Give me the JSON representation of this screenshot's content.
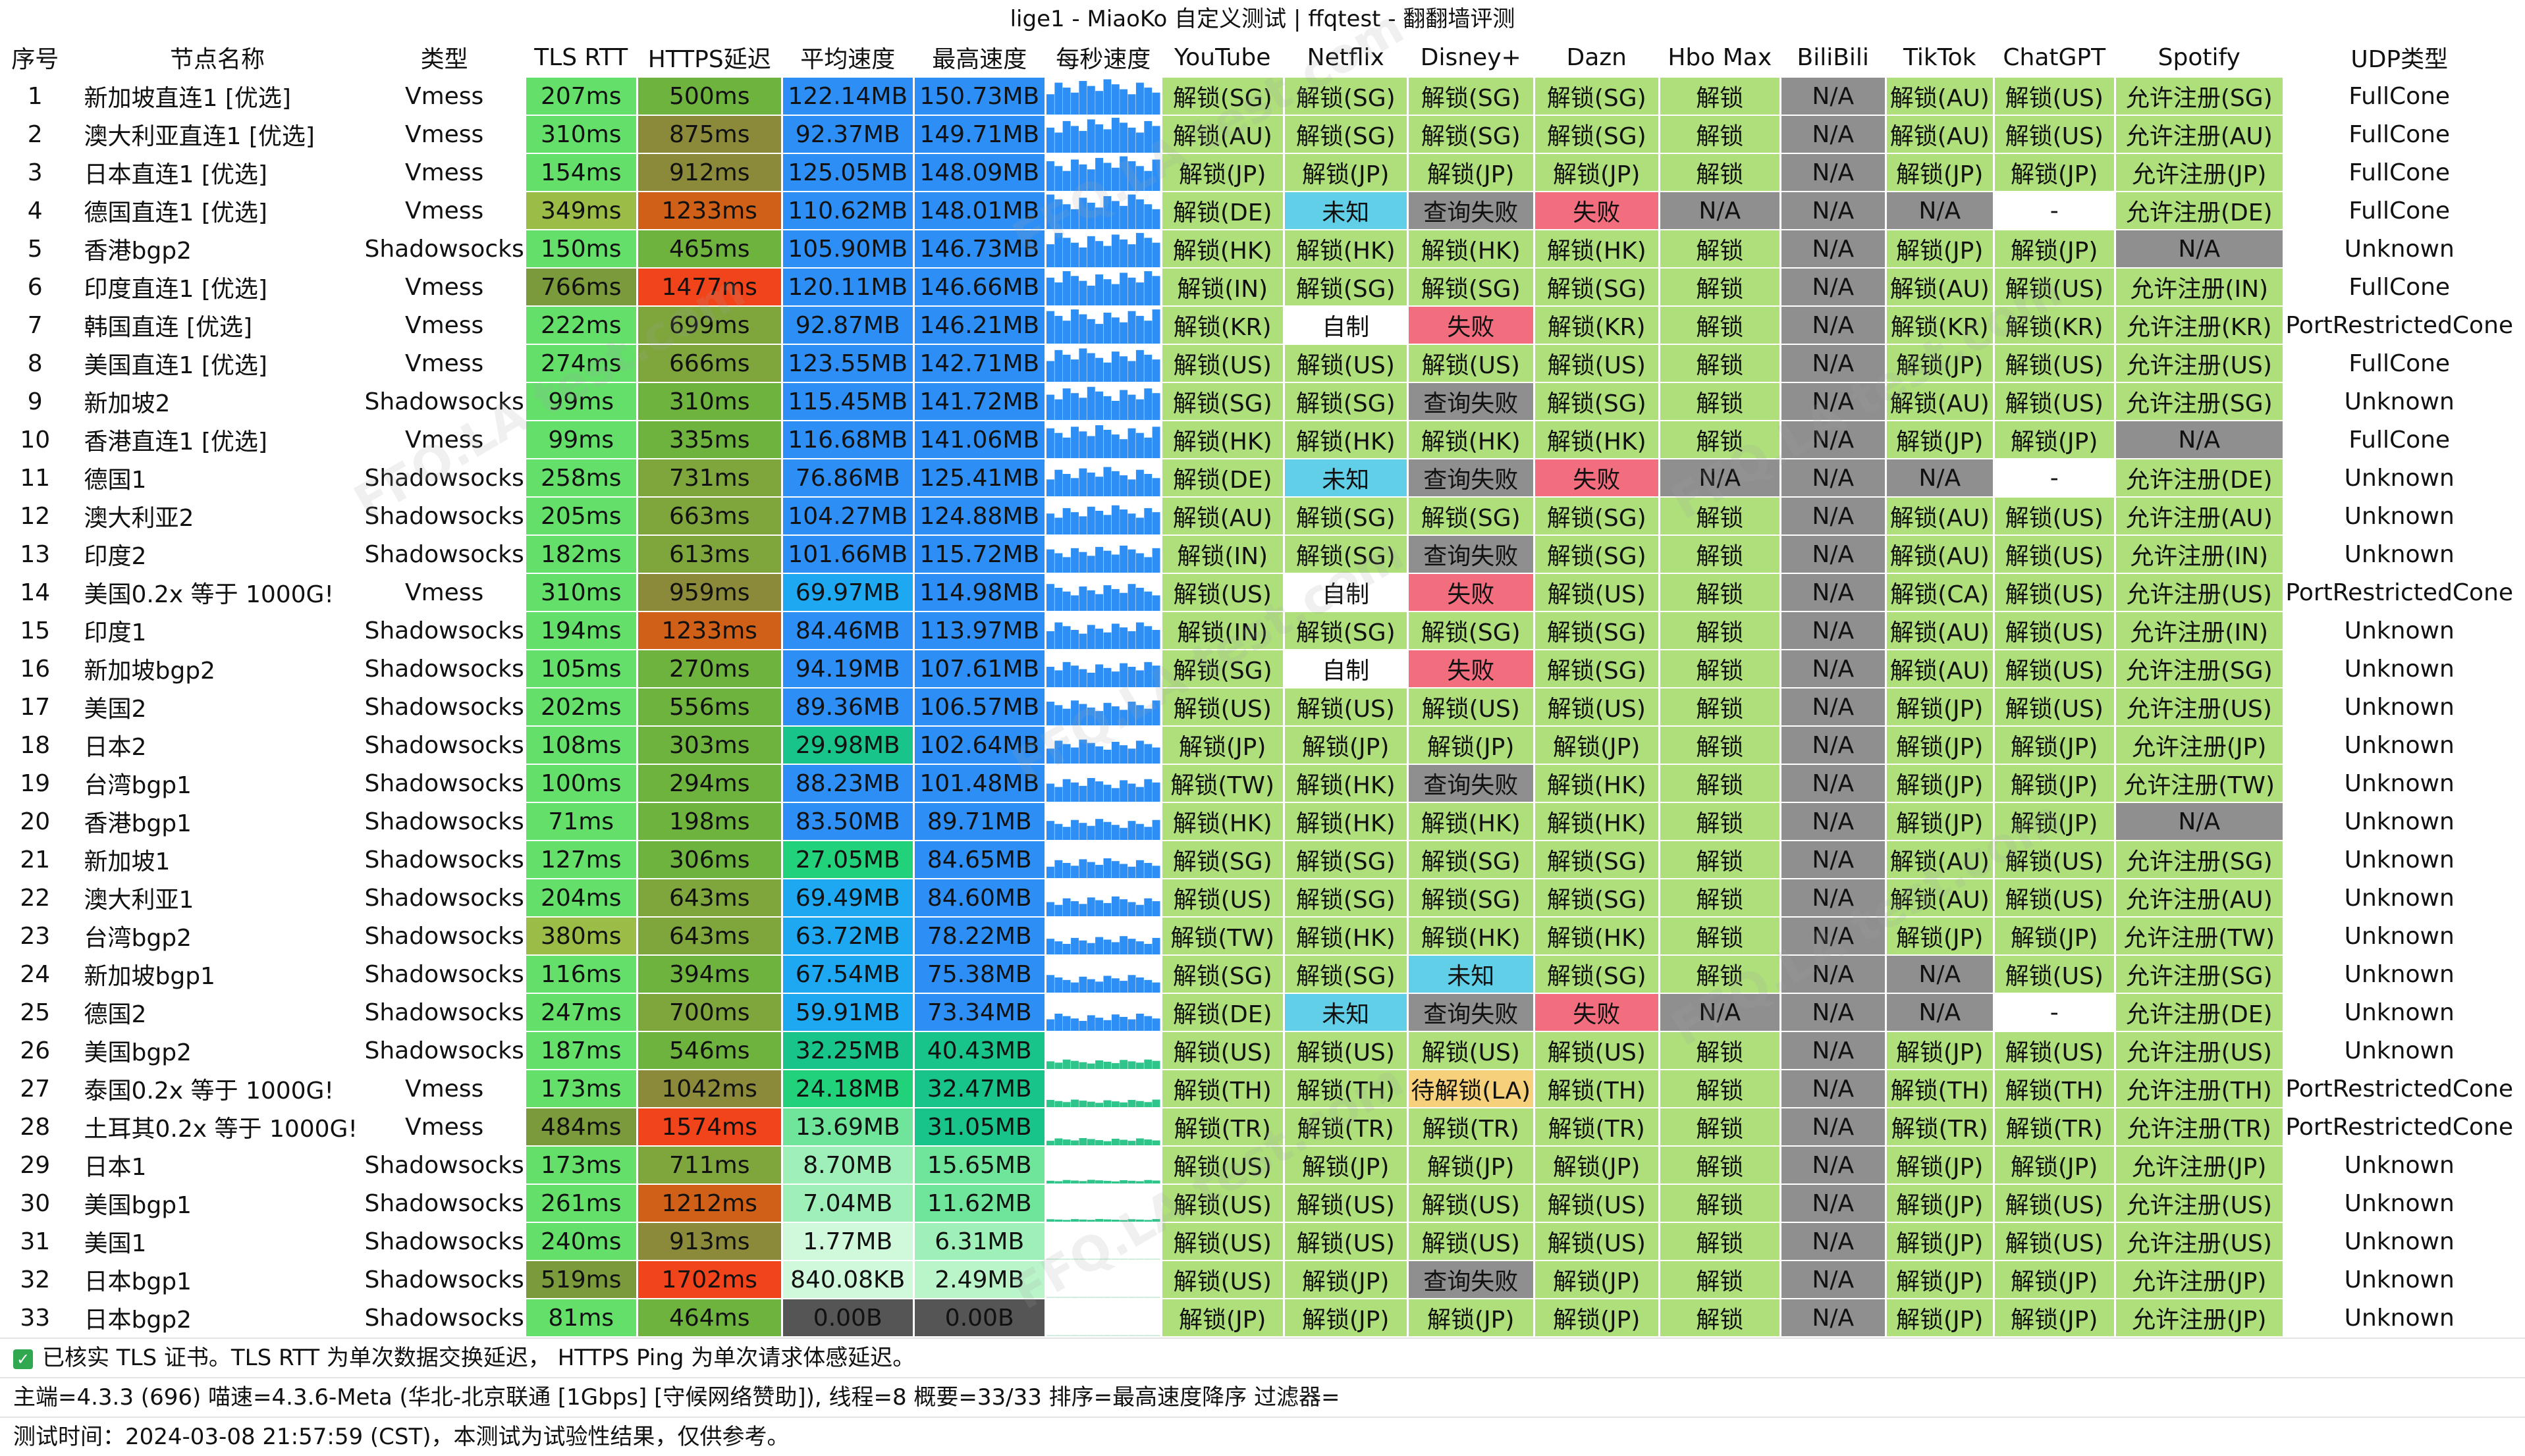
{
  "title": "lige1 - MiaoKo 自定义测试 | ffqtest - 翻翻墙评测",
  "watermark": "FFQ.LA test.com",
  "columns": [
    "序号",
    "节点名称",
    "类型",
    "TLS RTT",
    "HTTPS延迟",
    "平均速度",
    "最高速度",
    "每秒速度",
    "YouTube",
    "Netflix",
    "Disney+",
    "Dazn",
    "Hbo Max",
    "BiliBili",
    "TikTok",
    "ChatGPT",
    "Spotify",
    "UDP类型"
  ],
  "colors": {
    "unlock_green": "#aedf7b",
    "fail_red": "#f26e7f",
    "na_gray": "#8f8f8f",
    "unknown_blue": "#62cfe8",
    "pending_orange": "#f6d07a",
    "white": "#ffffff",
    "tls_green": "#64df6a",
    "tls_olive": "#7a9a3c",
    "tls_mid": "#9bbc46",
    "https_green": "#6fb33f",
    "https_olive": "#8a8a3a",
    "https_orange": "#d06018",
    "https_red": "#f2441a"
  },
  "rows": [
    {
      "no": "1",
      "name": "新加坡直连1 [优选]",
      "type": "Vmess",
      "tls": "207ms",
      "https": "500ms",
      "avg": "122.14MB",
      "max": "150.73MB",
      "yt": "解锁(SG)",
      "nf": "解锁(SG)",
      "dis": "解锁(SG)",
      "dazn": "解锁(SG)",
      "hbo": "解锁",
      "bili": "N/A",
      "tt": "解锁(AU)",
      "gpt": "解锁(US)",
      "sp": "允许注册(SG)",
      "udp": "FullCone"
    },
    {
      "no": "2",
      "name": "澳大利亚直连1 [优选]",
      "type": "Vmess",
      "tls": "310ms",
      "https": "875ms",
      "avg": "92.37MB",
      "max": "149.71MB",
      "yt": "解锁(AU)",
      "nf": "解锁(SG)",
      "dis": "解锁(SG)",
      "dazn": "解锁(SG)",
      "hbo": "解锁",
      "bili": "N/A",
      "tt": "解锁(AU)",
      "gpt": "解锁(US)",
      "sp": "允许注册(AU)",
      "udp": "FullCone"
    },
    {
      "no": "3",
      "name": "日本直连1 [优选]",
      "type": "Vmess",
      "tls": "154ms",
      "https": "912ms",
      "avg": "125.05MB",
      "max": "148.09MB",
      "yt": "解锁(JP)",
      "nf": "解锁(JP)",
      "dis": "解锁(JP)",
      "dazn": "解锁(JP)",
      "hbo": "解锁",
      "bili": "N/A",
      "tt": "解锁(JP)",
      "gpt": "解锁(JP)",
      "sp": "允许注册(JP)",
      "udp": "FullCone"
    },
    {
      "no": "4",
      "name": "德国直连1 [优选]",
      "type": "Vmess",
      "tls": "349ms",
      "https": "1233ms",
      "avg": "110.62MB",
      "max": "148.01MB",
      "yt": "解锁(DE)",
      "nf": "未知",
      "dis": "查询失败",
      "dazn": "失败",
      "hbo": "N/A",
      "bili": "N/A",
      "tt": "N/A",
      "gpt": "-",
      "sp": "允许注册(DE)",
      "udp": "FullCone"
    },
    {
      "no": "5",
      "name": "香港bgp2",
      "type": "Shadowsocks",
      "tls": "150ms",
      "https": "465ms",
      "avg": "105.90MB",
      "max": "146.73MB",
      "yt": "解锁(HK)",
      "nf": "解锁(HK)",
      "dis": "解锁(HK)",
      "dazn": "解锁(HK)",
      "hbo": "解锁",
      "bili": "N/A",
      "tt": "解锁(JP)",
      "gpt": "解锁(JP)",
      "sp": "N/A",
      "udp": "Unknown"
    },
    {
      "no": "6",
      "name": "印度直连1 [优选]",
      "type": "Vmess",
      "tls": "766ms",
      "https": "1477ms",
      "avg": "120.11MB",
      "max": "146.66MB",
      "yt": "解锁(IN)",
      "nf": "解锁(SG)",
      "dis": "解锁(SG)",
      "dazn": "解锁(SG)",
      "hbo": "解锁",
      "bili": "N/A",
      "tt": "解锁(AU)",
      "gpt": "解锁(US)",
      "sp": "允许注册(IN)",
      "udp": "FullCone"
    },
    {
      "no": "7",
      "name": "韩国直连 [优选]",
      "type": "Vmess",
      "tls": "222ms",
      "https": "699ms",
      "avg": "92.87MB",
      "max": "146.21MB",
      "yt": "解锁(KR)",
      "nf": "自制",
      "dis": "失败",
      "dazn": "解锁(KR)",
      "hbo": "解锁",
      "bili": "N/A",
      "tt": "解锁(KR)",
      "gpt": "解锁(KR)",
      "sp": "允许注册(KR)",
      "udp": "PortRestrictedCone"
    },
    {
      "no": "8",
      "name": "美国直连1 [优选]",
      "type": "Vmess",
      "tls": "274ms",
      "https": "666ms",
      "avg": "123.55MB",
      "max": "142.71MB",
      "yt": "解锁(US)",
      "nf": "解锁(US)",
      "dis": "解锁(US)",
      "dazn": "解锁(US)",
      "hbo": "解锁",
      "bili": "N/A",
      "tt": "解锁(JP)",
      "gpt": "解锁(US)",
      "sp": "允许注册(US)",
      "udp": "FullCone"
    },
    {
      "no": "9",
      "name": "新加坡2",
      "type": "Shadowsocks",
      "tls": "99ms",
      "https": "310ms",
      "avg": "115.45MB",
      "max": "141.72MB",
      "yt": "解锁(SG)",
      "nf": "解锁(SG)",
      "dis": "查询失败",
      "dazn": "解锁(SG)",
      "hbo": "解锁",
      "bili": "N/A",
      "tt": "解锁(AU)",
      "gpt": "解锁(US)",
      "sp": "允许注册(SG)",
      "udp": "Unknown"
    },
    {
      "no": "10",
      "name": "香港直连1 [优选]",
      "type": "Vmess",
      "tls": "99ms",
      "https": "335ms",
      "avg": "116.68MB",
      "max": "141.06MB",
      "yt": "解锁(HK)",
      "nf": "解锁(HK)",
      "dis": "解锁(HK)",
      "dazn": "解锁(HK)",
      "hbo": "解锁",
      "bili": "N/A",
      "tt": "解锁(JP)",
      "gpt": "解锁(JP)",
      "sp": "N/A",
      "udp": "FullCone"
    },
    {
      "no": "11",
      "name": "德国1",
      "type": "Shadowsocks",
      "tls": "258ms",
      "https": "731ms",
      "avg": "76.86MB",
      "max": "125.41MB",
      "yt": "解锁(DE)",
      "nf": "未知",
      "dis": "查询失败",
      "dazn": "失败",
      "hbo": "N/A",
      "bili": "N/A",
      "tt": "N/A",
      "gpt": "-",
      "sp": "允许注册(DE)",
      "udp": "Unknown"
    },
    {
      "no": "12",
      "name": "澳大利亚2",
      "type": "Shadowsocks",
      "tls": "205ms",
      "https": "663ms",
      "avg": "104.27MB",
      "max": "124.88MB",
      "yt": "解锁(AU)",
      "nf": "解锁(SG)",
      "dis": "解锁(SG)",
      "dazn": "解锁(SG)",
      "hbo": "解锁",
      "bili": "N/A",
      "tt": "解锁(AU)",
      "gpt": "解锁(US)",
      "sp": "允许注册(AU)",
      "udp": "Unknown"
    },
    {
      "no": "13",
      "name": "印度2",
      "type": "Shadowsocks",
      "tls": "182ms",
      "https": "613ms",
      "avg": "101.66MB",
      "max": "115.72MB",
      "yt": "解锁(IN)",
      "nf": "解锁(SG)",
      "dis": "查询失败",
      "dazn": "解锁(SG)",
      "hbo": "解锁",
      "bili": "N/A",
      "tt": "解锁(AU)",
      "gpt": "解锁(US)",
      "sp": "允许注册(IN)",
      "udp": "Unknown"
    },
    {
      "no": "14",
      "name": "美国0.2x 等于 1000G!",
      "type": "Vmess",
      "tls": "310ms",
      "https": "959ms",
      "avg": "69.97MB",
      "max": "114.98MB",
      "yt": "解锁(US)",
      "nf": "自制",
      "dis": "失败",
      "dazn": "解锁(US)",
      "hbo": "解锁",
      "bili": "N/A",
      "tt": "解锁(CA)",
      "gpt": "解锁(US)",
      "sp": "允许注册(US)",
      "udp": "PortRestrictedCone"
    },
    {
      "no": "15",
      "name": "印度1",
      "type": "Shadowsocks",
      "tls": "194ms",
      "https": "1233ms",
      "avg": "84.46MB",
      "max": "113.97MB",
      "yt": "解锁(IN)",
      "nf": "解锁(SG)",
      "dis": "解锁(SG)",
      "dazn": "解锁(SG)",
      "hbo": "解锁",
      "bili": "N/A",
      "tt": "解锁(AU)",
      "gpt": "解锁(US)",
      "sp": "允许注册(IN)",
      "udp": "Unknown"
    },
    {
      "no": "16",
      "name": "新加坡bgp2",
      "type": "Shadowsocks",
      "tls": "105ms",
      "https": "270ms",
      "avg": "94.19MB",
      "max": "107.61MB",
      "yt": "解锁(SG)",
      "nf": "自制",
      "dis": "失败",
      "dazn": "解锁(SG)",
      "hbo": "解锁",
      "bili": "N/A",
      "tt": "解锁(AU)",
      "gpt": "解锁(US)",
      "sp": "允许注册(SG)",
      "udp": "Unknown"
    },
    {
      "no": "17",
      "name": "美国2",
      "type": "Shadowsocks",
      "tls": "202ms",
      "https": "556ms",
      "avg": "89.36MB",
      "max": "106.57MB",
      "yt": "解锁(US)",
      "nf": "解锁(US)",
      "dis": "解锁(US)",
      "dazn": "解锁(US)",
      "hbo": "解锁",
      "bili": "N/A",
      "tt": "解锁(JP)",
      "gpt": "解锁(US)",
      "sp": "允许注册(US)",
      "udp": "Unknown"
    },
    {
      "no": "18",
      "name": "日本2",
      "type": "Shadowsocks",
      "tls": "108ms",
      "https": "303ms",
      "avg": "29.98MB",
      "max": "102.64MB",
      "yt": "解锁(JP)",
      "nf": "解锁(JP)",
      "dis": "解锁(JP)",
      "dazn": "解锁(JP)",
      "hbo": "解锁",
      "bili": "N/A",
      "tt": "解锁(JP)",
      "gpt": "解锁(JP)",
      "sp": "允许注册(JP)",
      "udp": "Unknown"
    },
    {
      "no": "19",
      "name": "台湾bgp1",
      "type": "Shadowsocks",
      "tls": "100ms",
      "https": "294ms",
      "avg": "88.23MB",
      "max": "101.48MB",
      "yt": "解锁(TW)",
      "nf": "解锁(HK)",
      "dis": "查询失败",
      "dazn": "解锁(HK)",
      "hbo": "解锁",
      "bili": "N/A",
      "tt": "解锁(JP)",
      "gpt": "解锁(JP)",
      "sp": "允许注册(TW)",
      "udp": "Unknown"
    },
    {
      "no": "20",
      "name": "香港bgp1",
      "type": "Shadowsocks",
      "tls": "71ms",
      "https": "198ms",
      "avg": "83.50MB",
      "max": "89.71MB",
      "yt": "解锁(HK)",
      "nf": "解锁(HK)",
      "dis": "解锁(HK)",
      "dazn": "解锁(HK)",
      "hbo": "解锁",
      "bili": "N/A",
      "tt": "解锁(JP)",
      "gpt": "解锁(JP)",
      "sp": "N/A",
      "udp": "Unknown"
    },
    {
      "no": "21",
      "name": "新加坡1",
      "type": "Shadowsocks",
      "tls": "127ms",
      "https": "306ms",
      "avg": "27.05MB",
      "max": "84.65MB",
      "yt": "解锁(SG)",
      "nf": "解锁(SG)",
      "dis": "解锁(SG)",
      "dazn": "解锁(SG)",
      "hbo": "解锁",
      "bili": "N/A",
      "tt": "解锁(AU)",
      "gpt": "解锁(US)",
      "sp": "允许注册(SG)",
      "udp": "Unknown"
    },
    {
      "no": "22",
      "name": "澳大利亚1",
      "type": "Shadowsocks",
      "tls": "204ms",
      "https": "643ms",
      "avg": "69.49MB",
      "max": "84.60MB",
      "yt": "解锁(US)",
      "nf": "解锁(SG)",
      "dis": "解锁(SG)",
      "dazn": "解锁(SG)",
      "hbo": "解锁",
      "bili": "N/A",
      "tt": "解锁(AU)",
      "gpt": "解锁(US)",
      "sp": "允许注册(AU)",
      "udp": "Unknown"
    },
    {
      "no": "23",
      "name": "台湾bgp2",
      "type": "Shadowsocks",
      "tls": "380ms",
      "https": "643ms",
      "avg": "63.72MB",
      "max": "78.22MB",
      "yt": "解锁(TW)",
      "nf": "解锁(HK)",
      "dis": "解锁(HK)",
      "dazn": "解锁(HK)",
      "hbo": "解锁",
      "bili": "N/A",
      "tt": "解锁(JP)",
      "gpt": "解锁(JP)",
      "sp": "允许注册(TW)",
      "udp": "Unknown"
    },
    {
      "no": "24",
      "name": "新加坡bgp1",
      "type": "Shadowsocks",
      "tls": "116ms",
      "https": "394ms",
      "avg": "67.54MB",
      "max": "75.38MB",
      "yt": "解锁(SG)",
      "nf": "解锁(SG)",
      "dis": "未知",
      "dazn": "解锁(SG)",
      "hbo": "解锁",
      "bili": "N/A",
      "tt": "N/A",
      "gpt": "解锁(US)",
      "sp": "允许注册(SG)",
      "udp": "Unknown"
    },
    {
      "no": "25",
      "name": "德国2",
      "type": "Shadowsocks",
      "tls": "247ms",
      "https": "700ms",
      "avg": "59.91MB",
      "max": "73.34MB",
      "yt": "解锁(DE)",
      "nf": "未知",
      "dis": "查询失败",
      "dazn": "失败",
      "hbo": "N/A",
      "bili": "N/A",
      "tt": "N/A",
      "gpt": "-",
      "sp": "允许注册(DE)",
      "udp": "Unknown"
    },
    {
      "no": "26",
      "name": "美国bgp2",
      "type": "Shadowsocks",
      "tls": "187ms",
      "https": "546ms",
      "avg": "32.25MB",
      "max": "40.43MB",
      "yt": "解锁(US)",
      "nf": "解锁(US)",
      "dis": "解锁(US)",
      "dazn": "解锁(US)",
      "hbo": "解锁",
      "bili": "N/A",
      "tt": "解锁(JP)",
      "gpt": "解锁(US)",
      "sp": "允许注册(US)",
      "udp": "Unknown"
    },
    {
      "no": "27",
      "name": "泰国0.2x 等于 1000G!",
      "type": "Vmess",
      "tls": "173ms",
      "https": "1042ms",
      "avg": "24.18MB",
      "max": "32.47MB",
      "yt": "解锁(TH)",
      "nf": "解锁(TH)",
      "dis": "待解锁(LA)",
      "dazn": "解锁(TH)",
      "hbo": "解锁",
      "bili": "N/A",
      "tt": "解锁(TH)",
      "gpt": "解锁(TH)",
      "sp": "允许注册(TH)",
      "udp": "PortRestrictedCone"
    },
    {
      "no": "28",
      "name": "土耳其0.2x 等于 1000G!",
      "type": "Vmess",
      "tls": "484ms",
      "https": "1574ms",
      "avg": "13.69MB",
      "max": "31.05MB",
      "yt": "解锁(TR)",
      "nf": "解锁(TR)",
      "dis": "解锁(TR)",
      "dazn": "解锁(TR)",
      "hbo": "解锁",
      "bili": "N/A",
      "tt": "解锁(TR)",
      "gpt": "解锁(TR)",
      "sp": "允许注册(TR)",
      "udp": "PortRestrictedCone"
    },
    {
      "no": "29",
      "name": "日本1",
      "type": "Shadowsocks",
      "tls": "173ms",
      "https": "711ms",
      "avg": "8.70MB",
      "max": "15.65MB",
      "yt": "解锁(US)",
      "nf": "解锁(JP)",
      "dis": "解锁(JP)",
      "dazn": "解锁(JP)",
      "hbo": "解锁",
      "bili": "N/A",
      "tt": "解锁(JP)",
      "gpt": "解锁(JP)",
      "sp": "允许注册(JP)",
      "udp": "Unknown"
    },
    {
      "no": "30",
      "name": "美国bgp1",
      "type": "Shadowsocks",
      "tls": "261ms",
      "https": "1212ms",
      "avg": "7.04MB",
      "max": "11.62MB",
      "yt": "解锁(US)",
      "nf": "解锁(US)",
      "dis": "解锁(US)",
      "dazn": "解锁(US)",
      "hbo": "解锁",
      "bili": "N/A",
      "tt": "解锁(JP)",
      "gpt": "解锁(US)",
      "sp": "允许注册(US)",
      "udp": "Unknown"
    },
    {
      "no": "31",
      "name": "美国1",
      "type": "Shadowsocks",
      "tls": "240ms",
      "https": "913ms",
      "avg": "1.77MB",
      "max": "6.31MB",
      "yt": "解锁(US)",
      "nf": "解锁(US)",
      "dis": "解锁(US)",
      "dazn": "解锁(US)",
      "hbo": "解锁",
      "bili": "N/A",
      "tt": "解锁(JP)",
      "gpt": "解锁(US)",
      "sp": "允许注册(US)",
      "udp": "Unknown"
    },
    {
      "no": "32",
      "name": "日本bgp1",
      "type": "Shadowsocks",
      "tls": "519ms",
      "https": "1702ms",
      "avg": "840.08KB",
      "max": "2.49MB",
      "yt": "解锁(US)",
      "nf": "解锁(JP)",
      "dis": "查询失败",
      "dazn": "解锁(JP)",
      "hbo": "解锁",
      "bili": "N/A",
      "tt": "解锁(JP)",
      "gpt": "解锁(JP)",
      "sp": "允许注册(JP)",
      "udp": "Unknown"
    },
    {
      "no": "33",
      "name": "日本bgp2",
      "type": "Shadowsocks",
      "tls": "81ms",
      "https": "464ms",
      "avg": "0.00B",
      "max": "0.00B",
      "yt": "解锁(JP)",
      "nf": "解锁(JP)",
      "dis": "解锁(JP)",
      "dazn": "解锁(JP)",
      "hbo": "解锁",
      "bili": "N/A",
      "tt": "解锁(JP)",
      "gpt": "解锁(JP)",
      "sp": "允许注册(JP)",
      "udp": "Unknown"
    }
  ],
  "footer": {
    "check_icon": "check-icon",
    "note1": "已核实 TLS 证书。TLS RTT 为单次数据交换延迟， HTTPS Ping 为单次请求体感延迟。",
    "note2": "主端=4.3.3 (696) 喵速=4.3.6-Meta (华北-北京联通 [1Gbps] [守候网络赞助]), 线程=8 概要=33/33 排序=最高速度降序 过滤器=",
    "note3": "测试时间：2024-03-08 21:57:59 (CST)，本测试为试验性结果，仅供参考。"
  }
}
